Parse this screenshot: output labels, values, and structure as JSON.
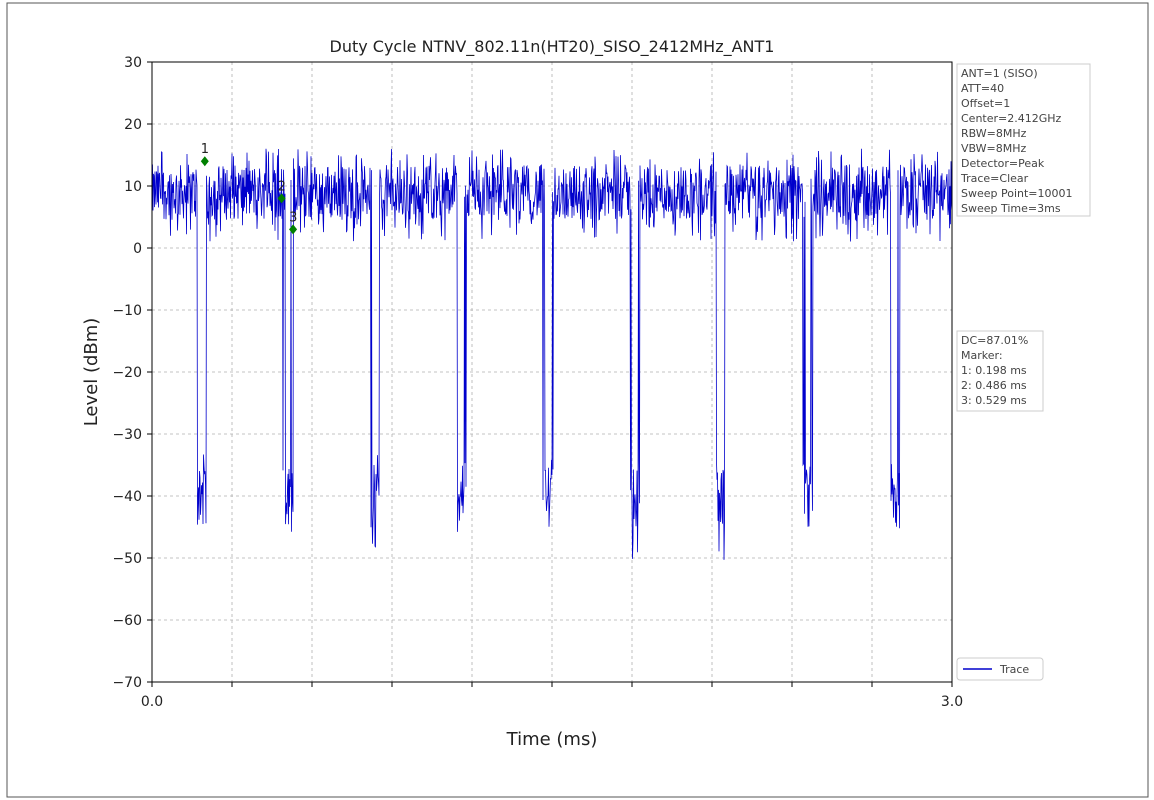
{
  "chart_data": {
    "type": "line",
    "title": "Duty Cycle NTNV_802.11n(HT20)_SISO_2412MHz_ANT1",
    "xlabel": "Time (ms)",
    "ylabel": "Level (dBm)",
    "xlim": [
      0.0,
      3.0
    ],
    "ylim": [
      -70,
      30
    ],
    "x_tick_labels": [
      "0.0",
      "3.0"
    ],
    "y_ticks": [
      30,
      20,
      10,
      0,
      -10,
      -20,
      -30,
      -40,
      -50,
      -60,
      -70
    ],
    "y_tick_labels": [
      "30",
      "20",
      "10",
      "0",
      "−10",
      "−20",
      "−30",
      "−40",
      "−50",
      "−60",
      "−70"
    ],
    "grid": true,
    "legend": "lower-right",
    "series": [
      {
        "name": "Trace",
        "color": "#0000cc",
        "on_level_dBm": 9,
        "on_range_dBm": [
          1,
          16
        ],
        "off_level_dBm": -40,
        "off_range_dBm": [
          -51,
          -33
        ],
        "off_intervals_ms": [
          [
            0.17,
            0.2
          ],
          [
            0.495,
            0.525
          ],
          [
            0.82,
            0.85
          ],
          [
            1.145,
            1.175
          ],
          [
            1.47,
            1.5
          ],
          [
            1.795,
            1.825
          ],
          [
            2.12,
            2.15
          ],
          [
            2.445,
            2.475
          ],
          [
            2.77,
            2.8
          ]
        ]
      }
    ],
    "markers": [
      {
        "label": "1",
        "x": 0.198,
        "y": 14
      },
      {
        "label": "2",
        "x": 0.486,
        "y": 8
      },
      {
        "label": "3",
        "x": 0.529,
        "y": 3
      }
    ],
    "settings_box": [
      "ANT=1 (SISO)",
      "ATT=40",
      "Offset=1",
      "Center=2.412GHz",
      "RBW=8MHz",
      "VBW=8MHz",
      "Detector=Peak",
      "Trace=Clear",
      "Sweep Point=10001",
      "Sweep Time=3ms"
    ],
    "result_box": [
      "DC=87.01%",
      "Marker:",
      "1: 0.198 ms",
      "2: 0.486 ms",
      "3: 0.529 ms"
    ]
  }
}
